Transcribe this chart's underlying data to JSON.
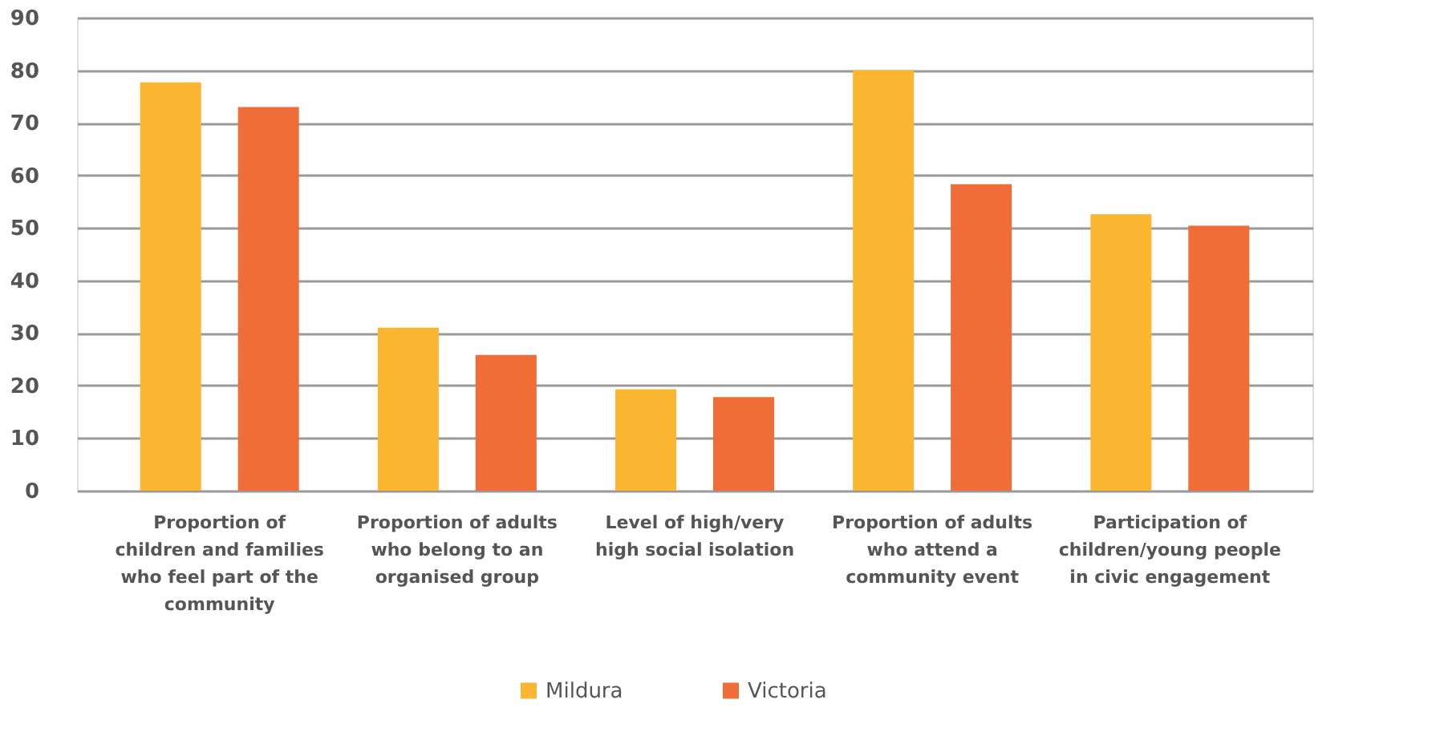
{
  "chart_data": {
    "type": "bar",
    "categories": [
      "Proportion of children and families who feel part of the community",
      "Proportion of adults who belong to an organised group",
      "Level of high/very high social isolation",
      "Proportion of adults who attend a community event",
      "Participation of children/young people in civic engagement"
    ],
    "series": [
      {
        "name": "Mildura",
        "color": "#fbb52f",
        "values": [
          77.7,
          31,
          19.3,
          80,
          52.6
        ]
      },
      {
        "name": "Victoria",
        "color": "#f06d37",
        "values": [
          73,
          25.8,
          17.8,
          58.3,
          50.4
        ]
      }
    ],
    "ylim": [
      0,
      90
    ],
    "yticks": [
      0,
      10,
      20,
      30,
      40,
      50,
      60,
      70,
      80,
      90
    ],
    "grid": "y",
    "legend": "bottom"
  }
}
